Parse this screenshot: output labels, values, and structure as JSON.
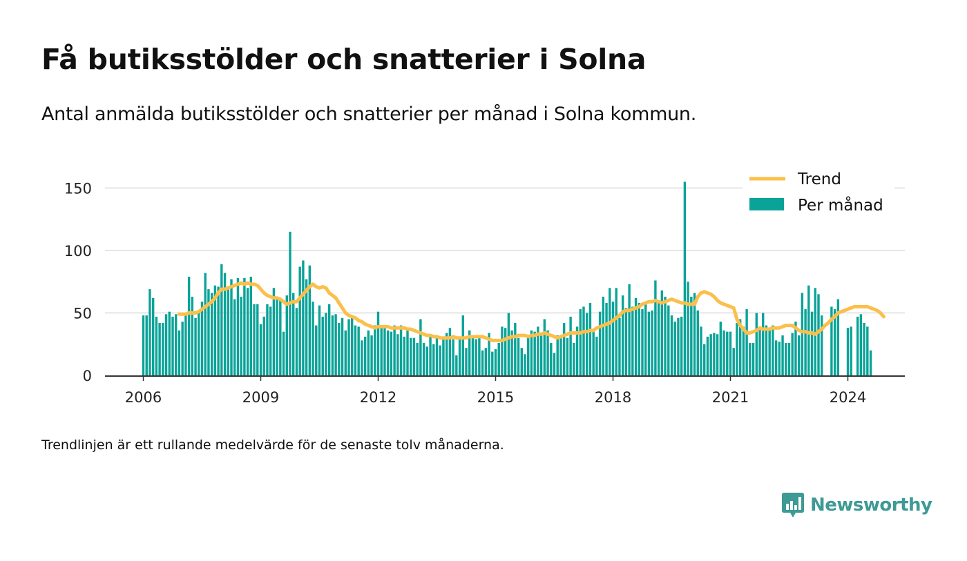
{
  "header": {
    "title": "Få butiksstölder och snatterier i Solna",
    "subtitle": "Antal anmälda butiksstölder och snatterier per månad i Solna kommun."
  },
  "footnote": "Trendlinjen är ett rullande medelvärde för de senaste tolv månaderna.",
  "brand": {
    "name": "Newsworthy",
    "icon": "newsworthy-logo-icon",
    "color": "#3d9a94"
  },
  "chart_data": {
    "type": "bar",
    "x_start": "2006-01",
    "x_unit": "month",
    "xticks": [
      "2006",
      "2009",
      "2012",
      "2015",
      "2018",
      "2021",
      "2024"
    ],
    "ylim": [
      0,
      165
    ],
    "yticks": [
      "0",
      "50",
      "100",
      "150"
    ],
    "grid": true,
    "legend_position": "top-right",
    "colors": {
      "bars": "#0aa398",
      "trend": "#fbbf4b",
      "grid": "#dcdcdc",
      "axis": "#333333"
    },
    "series": [
      {
        "name": "Per månad",
        "values": [
          48,
          48,
          69,
          62,
          47,
          42,
          42,
          49,
          51,
          47,
          49,
          36,
          43,
          50,
          79,
          63,
          46,
          50,
          59,
          82,
          69,
          66,
          72,
          71,
          89,
          82,
          70,
          77,
          61,
          78,
          63,
          78,
          70,
          79,
          57,
          57,
          41,
          47,
          57,
          55,
          70,
          62,
          61,
          35,
          64,
          115,
          66,
          54,
          87,
          92,
          77,
          88,
          59,
          40,
          56,
          47,
          50,
          57,
          48,
          49,
          42,
          46,
          36,
          45,
          47,
          40,
          39,
          28,
          31,
          36,
          32,
          40,
          51,
          40,
          40,
          36,
          35,
          40,
          33,
          40,
          31,
          38,
          30,
          30,
          26,
          45,
          26,
          23,
          32,
          25,
          30,
          24,
          29,
          34,
          38,
          29,
          16,
          29,
          48,
          22,
          36,
          32,
          29,
          32,
          20,
          22,
          34,
          19,
          21,
          26,
          39,
          38,
          50,
          36,
          42,
          30,
          22,
          17,
          32,
          36,
          35,
          39,
          33,
          45,
          36,
          26,
          18,
          32,
          31,
          42,
          30,
          47,
          26,
          39,
          53,
          55,
          50,
          58,
          36,
          31,
          51,
          63,
          58,
          70,
          59,
          70,
          46,
          64,
          54,
          73,
          55,
          62,
          58,
          53,
          57,
          51,
          52,
          76,
          58,
          68,
          63,
          56,
          48,
          43,
          46,
          47,
          155,
          75,
          63,
          66,
          52,
          39,
          25,
          31,
          33,
          34,
          33,
          43,
          36,
          35,
          35,
          22,
          42,
          45,
          39,
          53,
          26,
          26,
          50,
          38,
          50,
          40,
          36,
          40,
          28,
          27,
          32,
          26,
          26,
          34,
          43,
          32,
          66,
          53,
          72,
          51,
          70,
          65,
          48,
          0,
          0,
          55,
          53,
          61,
          0,
          0,
          38,
          39,
          0,
          47,
          49,
          42,
          39,
          20
        ]
      },
      {
        "name": "Trend",
        "values": [
          null,
          null,
          null,
          null,
          null,
          null,
          null,
          null,
          null,
          null,
          null,
          49,
          49,
          49,
          50,
          50,
          50,
          51,
          53,
          55,
          57,
          59,
          62,
          66,
          69,
          69,
          70,
          71,
          72,
          73,
          74,
          73,
          74,
          73,
          73,
          72,
          69,
          66,
          64,
          63,
          62,
          62,
          61,
          59,
          57,
          58,
          59,
          59,
          62,
          65,
          68,
          71,
          73,
          71,
          70,
          71,
          70,
          66,
          64,
          62,
          58,
          54,
          50,
          48,
          47,
          46,
          44,
          43,
          41,
          40,
          39,
          38,
          39,
          39,
          39,
          39,
          38,
          38,
          38,
          38,
          38,
          37,
          37,
          36,
          35,
          34,
          33,
          32,
          32,
          31,
          31,
          30,
          30,
          30,
          30,
          31,
          30,
          30,
          30,
          30,
          31,
          31,
          31,
          31,
          31,
          30,
          29,
          28,
          28,
          28,
          28,
          29,
          30,
          31,
          31,
          32,
          32,
          32,
          31,
          32,
          32,
          33,
          33,
          34,
          33,
          32,
          31,
          30,
          31,
          32,
          33,
          34,
          34,
          34,
          34,
          35,
          35,
          36,
          36,
          38,
          39,
          40,
          41,
          42,
          44,
          46,
          48,
          51,
          52,
          52,
          53,
          54,
          55,
          57,
          58,
          59,
          59,
          60,
          59,
          58,
          59,
          60,
          61,
          60,
          59,
          58,
          58,
          57,
          57,
          57,
          63,
          66,
          67,
          66,
          65,
          63,
          60,
          58,
          57,
          56,
          55,
          54,
          45,
          40,
          37,
          34,
          34,
          35,
          36,
          38,
          37,
          37,
          37,
          38,
          38,
          38,
          39,
          40,
          40,
          40,
          38,
          36,
          35,
          35,
          34,
          34,
          33,
          35,
          37,
          40,
          42,
          45,
          47,
          50,
          51,
          52,
          53,
          54,
          55,
          55,
          55,
          55,
          55,
          54,
          53,
          52,
          50,
          47
        ]
      }
    ]
  }
}
